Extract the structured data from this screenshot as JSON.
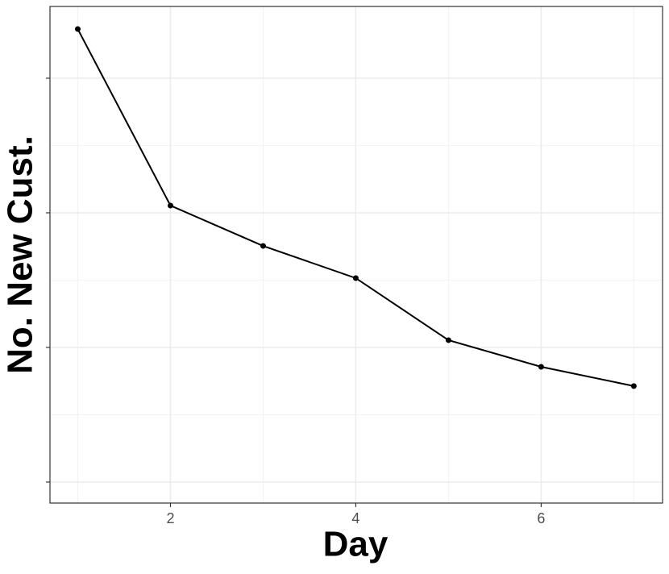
{
  "chart_data": {
    "type": "line",
    "x_label": "Day",
    "y_label": "No. New Cust.",
    "x": [
      1,
      2,
      3,
      4,
      5,
      6,
      7
    ],
    "series": [
      {
        "color": "#000000",
        "values": [
          3.365,
          2.054,
          1.754,
          1.515,
          1.054,
          0.856,
          0.713
        ]
      }
    ],
    "xlim": [
      0.7,
      7.31
    ],
    "xticks": [
      2,
      4,
      6
    ],
    "xminor": [
      1,
      3,
      5,
      7
    ],
    "ylim": [
      -0.156,
      3.533
    ],
    "yticks": [
      0,
      1,
      2,
      3
    ],
    "yminor": [
      0.5,
      1.5,
      2.5
    ],
    "y_tick_labels": false,
    "grid": true
  }
}
